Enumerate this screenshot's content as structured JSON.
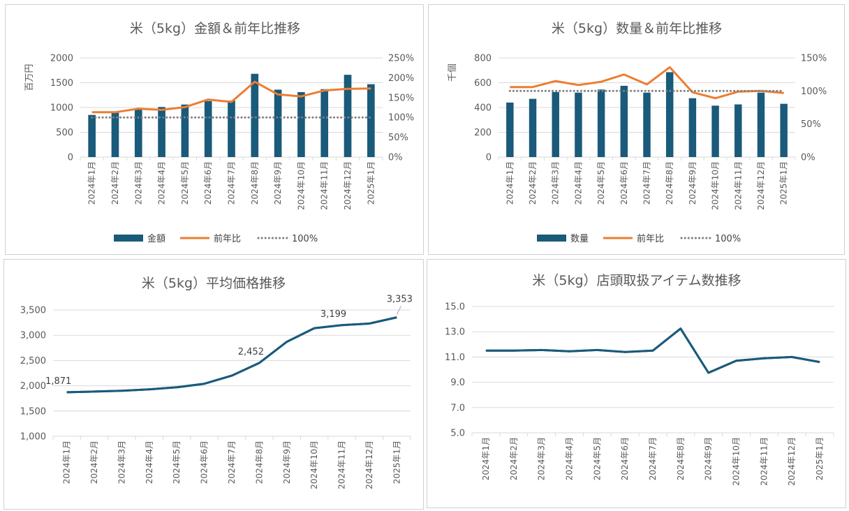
{
  "colors": {
    "bar": "#1a5a7a",
    "line_yoy": "#ed7d31",
    "ref_line": "#7f7f7f",
    "avg_line": "#1a5a7a",
    "grid": "#d9d9d9",
    "text": "#595959"
  },
  "chart_data": [
    {
      "id": "sales",
      "type": "bar",
      "title": "米（5kg）金額＆前年比推移",
      "ylabel": "百万円",
      "ylim": [
        0,
        2000
      ],
      "y_ticks": [
        "0",
        "500",
        "1000",
        "1500",
        "2000"
      ],
      "y2lim": [
        0,
        250
      ],
      "y2_ticks": [
        "0%",
        "50%",
        "100%",
        "150%",
        "200%",
        "250%"
      ],
      "categories": [
        "2024年1月",
        "2024年2月",
        "2024年3月",
        "2024年4月",
        "2024年5月",
        "2024年6月",
        "2024年7月",
        "2024年8月",
        "2024年9月",
        "2024年10月",
        "2024年11月",
        "2024年12月",
        "2025年1月"
      ],
      "series": [
        {
          "name": "金額",
          "type": "bar",
          "axis": "y",
          "values": [
            850,
            900,
            980,
            1010,
            1060,
            1130,
            1140,
            1680,
            1360,
            1310,
            1370,
            1660,
            1470
          ]
        },
        {
          "name": "前年比",
          "type": "line",
          "axis": "y2",
          "values": [
            113,
            113,
            122,
            119,
            126,
            145,
            139,
            190,
            158,
            153,
            168,
            172,
            173
          ]
        },
        {
          "name": "100%",
          "type": "line-dotted",
          "axis": "y2",
          "values": [
            100,
            100,
            100,
            100,
            100,
            100,
            100,
            100,
            100,
            100,
            100,
            100,
            100
          ]
        }
      ],
      "legend": "bottom"
    },
    {
      "id": "quantity",
      "type": "bar",
      "title": "米（5kg）数量＆前年比推移",
      "ylabel": "千個",
      "ylim": [
        0,
        800
      ],
      "y_ticks": [
        "0",
        "200",
        "400",
        "600",
        "800"
      ],
      "y2lim": [
        0,
        150
      ],
      "y2_ticks": [
        "0%",
        "50%",
        "100%",
        "150%"
      ],
      "categories": [
        "2024年1月",
        "2024年2月",
        "2024年3月",
        "2024年4月",
        "2024年5月",
        "2024年6月",
        "2024年7月",
        "2024年8月",
        "2024年9月",
        "2024年10月",
        "2024年11月",
        "2024年12月",
        "2025年1月"
      ],
      "series": [
        {
          "name": "数量",
          "type": "bar",
          "axis": "y",
          "values": [
            440,
            470,
            525,
            520,
            545,
            575,
            520,
            685,
            475,
            415,
            425,
            520,
            430
          ]
        },
        {
          "name": "前年比",
          "type": "line",
          "axis": "y2",
          "values": [
            106,
            106,
            115,
            109,
            114,
            125,
            110,
            136,
            98,
            89,
            99,
            100,
            97
          ]
        },
        {
          "name": "100%",
          "type": "line-dotted",
          "axis": "y2",
          "values": [
            100,
            100,
            100,
            100,
            100,
            100,
            100,
            100,
            100,
            100,
            100,
            100,
            100
          ]
        }
      ],
      "legend": "bottom"
    },
    {
      "id": "avg_price",
      "type": "line",
      "title": "米（5kg）平均価格推移",
      "ylim": [
        1000,
        3500
      ],
      "y_ticks": [
        "1,000",
        "1,500",
        "2,000",
        "2,500",
        "3,000",
        "3,500"
      ],
      "categories": [
        "2024年1月",
        "2024年2月",
        "2024年3月",
        "2024年4月",
        "2024年5月",
        "2024年6月",
        "2024年7月",
        "2024年8月",
        "2024年9月",
        "2024年10月",
        "2024年11月",
        "2024年12月",
        "2025年1月"
      ],
      "series": [
        {
          "name": "",
          "values": [
            1871,
            1885,
            1900,
            1930,
            1970,
            2040,
            2200,
            2452,
            2870,
            3140,
            3199,
            3230,
            3353
          ]
        }
      ],
      "data_labels": [
        {
          "index": 0,
          "text": "1,871"
        },
        {
          "index": 7,
          "text": "2,452"
        },
        {
          "index": 10,
          "text": "3,199"
        },
        {
          "index": 12,
          "text": "3,353"
        }
      ]
    },
    {
      "id": "items",
      "type": "line",
      "title": "米（5kg）店頭取扱アイテム数推移",
      "ylim": [
        5,
        15
      ],
      "y_ticks": [
        "5.0",
        "7.0",
        "9.0",
        "11.0",
        "13.0",
        "15.0"
      ],
      "categories": [
        "2024年1月",
        "2024年2月",
        "2024年3月",
        "2024年4月",
        "2024年5月",
        "2024年6月",
        "2024年7月",
        "2024年8月",
        "2024年9月",
        "2024年10月",
        "2024年11月",
        "2024年12月",
        "2025年1月"
      ],
      "series": [
        {
          "name": "",
          "values": [
            11.5,
            11.5,
            11.55,
            11.45,
            11.55,
            11.4,
            11.5,
            13.25,
            9.75,
            10.7,
            10.9,
            11.0,
            10.6
          ]
        }
      ]
    }
  ]
}
